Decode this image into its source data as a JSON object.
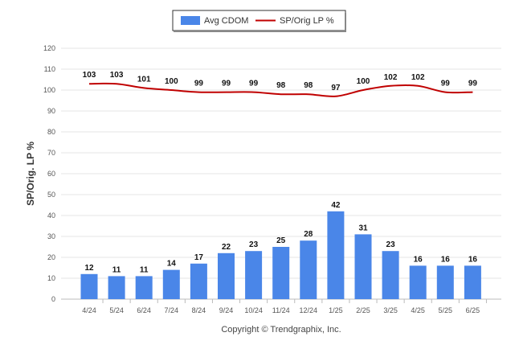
{
  "legend": {
    "bar_label": "Avg CDOM",
    "line_label": "SP/Orig LP %"
  },
  "footer": {
    "copyright": "Copyright © Trendgraphix, Inc."
  },
  "chart_data": {
    "type": "bar+line",
    "categories": [
      "4/24",
      "5/24",
      "6/24",
      "7/24",
      "8/24",
      "9/24",
      "10/24",
      "11/24",
      "12/24",
      "1/25",
      "2/25",
      "3/25",
      "4/25",
      "5/25",
      "6/25"
    ],
    "series": [
      {
        "name": "Avg CDOM",
        "type": "bar",
        "color": "#4a86e8",
        "values": [
          12,
          11,
          11,
          14,
          17,
          22,
          23,
          25,
          28,
          42,
          31,
          23,
          16,
          16,
          16
        ]
      },
      {
        "name": "SP/Orig LP %",
        "type": "line",
        "color": "#c00000",
        "values": [
          103,
          103,
          101,
          100,
          99,
          99,
          99,
          98,
          98,
          97,
          100,
          102,
          102,
          99,
          99
        ]
      }
    ],
    "ylabel": "SP/Orig. LP %",
    "ylim": [
      0,
      120
    ],
    "yticks": [
      0,
      10,
      20,
      30,
      40,
      50,
      60,
      70,
      80,
      90,
      100,
      110,
      120
    ],
    "grid": true,
    "legend_position": "top-center"
  }
}
